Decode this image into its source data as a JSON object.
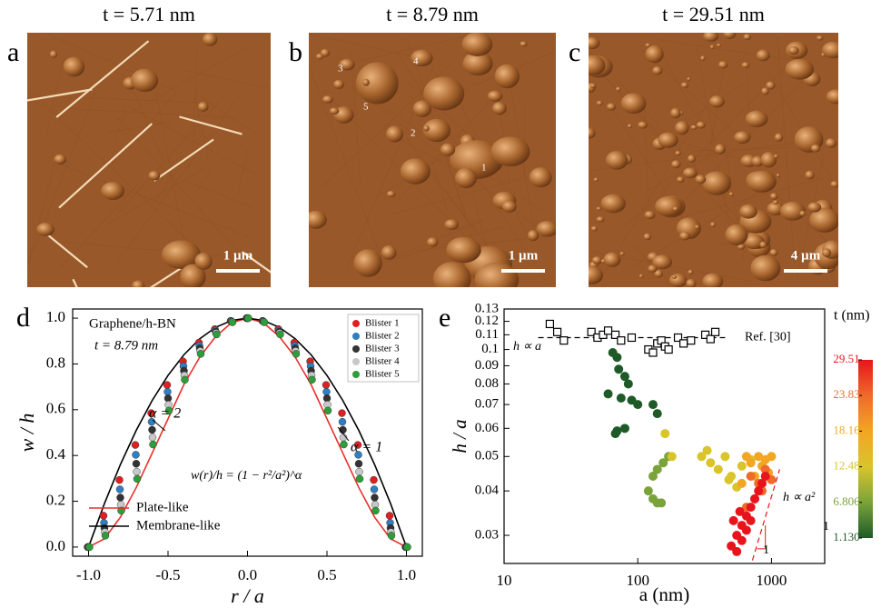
{
  "panels": [
    {
      "label": "a",
      "title": "t = 5.71 nm",
      "scale_bar": "1 µm"
    },
    {
      "label": "b",
      "title": "t = 8.79 nm",
      "scale_bar": "1 µm",
      "blister_labels": [
        "1",
        "2",
        "3",
        "4",
        "5"
      ]
    },
    {
      "label": "c",
      "title": "t = 29.51 nm",
      "scale_bar": "4 µm"
    }
  ],
  "chart_data": [
    {
      "type": "scatter",
      "panel": "d",
      "x_label": "r / a",
      "y_label": "w / h",
      "annotations": [
        "Graphene/h-BN",
        "t = 8.79 nm",
        "α = 2",
        "α = 1",
        "w(r)/h = (1 − r²/a²)^α"
      ],
      "xlim": [
        -1.1,
        1.1
      ],
      "ylim": [
        -0.04,
        1.04
      ],
      "xticks": [
        {
          "value": -1,
          "label": "-1.0"
        },
        -0.5,
        {
          "value": 0,
          "label": "0.0"
        },
        0.5,
        {
          "value": 1,
          "label": "1.0"
        }
      ],
      "yticks": [
        {
          "value": 0,
          "label": "0.0"
        },
        0.2,
        0.4,
        0.6,
        0.8,
        {
          "value": 1,
          "label": "1.0"
        }
      ],
      "x": [
        -1,
        -0.9,
        -0.8,
        -0.7,
        -0.6,
        -0.5,
        -0.4,
        -0.3,
        -0.2,
        -0.1,
        0,
        0.1,
        0.2,
        0.3,
        0.4,
        0.5,
        0.6,
        0.7,
        0.8,
        0.9,
        1
      ],
      "series": [
        {
          "name": "Blister 1",
          "color": "#e02020",
          "values": [
            0,
            0.137,
            0.293,
            0.446,
            0.585,
            0.708,
            0.811,
            0.893,
            0.952,
            0.988,
            1,
            0.988,
            0.952,
            0.893,
            0.811,
            0.708,
            0.585,
            0.446,
            0.293,
            0.137,
            0
          ]
        },
        {
          "name": "Blister 2",
          "color": "#2f7fc0",
          "values": [
            0,
            0.106,
            0.252,
            0.403,
            0.547,
            0.678,
            0.79,
            0.88,
            0.946,
            0.987,
            1,
            0.987,
            0.946,
            0.88,
            0.79,
            0.678,
            0.547,
            0.403,
            0.252,
            0.106,
            0
          ]
        },
        {
          "name": "Blister 3",
          "color": "#333333",
          "values": [
            0,
            0.083,
            0.216,
            0.364,
            0.512,
            0.65,
            0.77,
            0.868,
            0.941,
            0.985,
            1,
            0.985,
            0.941,
            0.868,
            0.77,
            0.65,
            0.512,
            0.364,
            0.216,
            0.083,
            0
          ]
        },
        {
          "name": "Blister 4",
          "color": "#c8c8c8",
          "values": [
            0,
            0.065,
            0.185,
            0.329,
            0.479,
            0.622,
            0.75,
            0.856,
            0.935,
            0.984,
            1,
            0.984,
            0.935,
            0.856,
            0.75,
            0.622,
            0.479,
            0.329,
            0.185,
            0.065,
            0
          ]
        },
        {
          "name": "Blister 5",
          "color": "#2e9e3a",
          "values": [
            0,
            0.05,
            0.159,
            0.298,
            0.448,
            0.596,
            0.731,
            0.844,
            0.929,
            0.982,
            1,
            0.982,
            0.929,
            0.844,
            0.731,
            0.596,
            0.448,
            0.298,
            0.159,
            0.05,
            0
          ]
        }
      ],
      "curves": [
        {
          "name": "Plate-like",
          "color": "#e8302a",
          "values": [
            0,
            0.036,
            0.13,
            0.26,
            0.41,
            0.56,
            0.71,
            0.83,
            0.92,
            0.98,
            1,
            0.98,
            0.92,
            0.83,
            0.71,
            0.56,
            0.41,
            0.26,
            0.13,
            0.036,
            0
          ]
        },
        {
          "name": "Membrane-like",
          "color": "#000000",
          "values": [
            0,
            0.19,
            0.36,
            0.51,
            0.64,
            0.75,
            0.84,
            0.91,
            0.96,
            0.99,
            1,
            0.99,
            0.96,
            0.91,
            0.84,
            0.75,
            0.64,
            0.51,
            0.36,
            0.19,
            0
          ]
        }
      ]
    },
    {
      "type": "scatter",
      "panel": "e",
      "x_label": "a (nm)",
      "y_label": "h / a",
      "log_x": true,
      "log_y": true,
      "annotations": [
        "h ∝ a",
        "h ∝ a²",
        "1",
        "1"
      ],
      "xlim": [
        10,
        2500
      ],
      "ylim": [
        0.025,
        0.13
      ],
      "xticks": [
        10,
        100,
        1000
      ],
      "yticks": [
        0.03,
        0.04,
        0.05,
        0.06,
        0.07,
        0.08,
        0.09,
        0.1,
        0.11,
        0.12,
        0.13
      ],
      "reference": {
        "name": "Ref. [30]",
        "color": "#000000",
        "x": [
          22,
          25,
          28,
          45,
          50,
          55,
          60,
          68,
          75,
          90,
          120,
          130,
          140,
          150,
          160,
          170,
          200,
          220,
          250,
          320,
          350,
          380
        ],
        "values": [
          0.118,
          0.112,
          0.106,
          0.112,
          0.108,
          0.11,
          0.113,
          0.11,
          0.106,
          0.108,
          0.1,
          0.098,
          0.104,
          0.106,
          0.102,
          0.1,
          0.108,
          0.104,
          0.106,
          0.11,
          0.107,
          0.112
        ]
      },
      "colorbar": {
        "label": "t (nm)",
        "lim": [
          1.13,
          29.51
        ],
        "colors": [
          "#1e5a28",
          "#7aa33a",
          "#d9c42a",
          "#f2a623",
          "#f06a2a",
          "#e8141c"
        ],
        "ticks": [
          {
            "value": 1.13,
            "label": "1.130"
          },
          6.806,
          12.48,
          18.16,
          23.83,
          29.51
        ]
      },
      "series": [
        {
          "t": 1.13,
          "color": "#1e5a28",
          "x": [
            65,
            70,
            72,
            80,
            85,
            60,
            75,
            90,
            100,
            130,
            140,
            70,
            80,
            68
          ],
          "values": [
            0.098,
            0.095,
            0.088,
            0.084,
            0.08,
            0.075,
            0.073,
            0.072,
            0.07,
            0.07,
            0.066,
            0.059,
            0.06,
            0.058
          ]
        },
        {
          "t": 6.806,
          "color": "#7aa33a",
          "x": [
            120,
            130,
            140,
            150,
            130,
            170,
            155,
            140
          ],
          "values": [
            0.04,
            0.038,
            0.037,
            0.037,
            0.044,
            0.05,
            0.048,
            0.046
          ]
        },
        {
          "t": 12.48,
          "color": "#d9c42a",
          "x": [
            160,
            180,
            300,
            330,
            350,
            400,
            450,
            500,
            600,
            700,
            550,
            480
          ],
          "values": [
            0.058,
            0.05,
            0.05,
            0.052,
            0.048,
            0.046,
            0.05,
            0.044,
            0.047,
            0.049,
            0.041,
            0.043
          ]
        },
        {
          "t": 18.16,
          "color": "#f2a623",
          "x": [
            650,
            700,
            800,
            900,
            1000,
            950,
            850,
            750,
            600
          ],
          "values": [
            0.05,
            0.048,
            0.05,
            0.049,
            0.05,
            0.045,
            0.047,
            0.044,
            0.042
          ]
        },
        {
          "t": 23.83,
          "color": "#f06a2a",
          "x": [
            700,
            800,
            900,
            1000,
            750,
            650,
            850
          ],
          "values": [
            0.044,
            0.042,
            0.046,
            0.043,
            0.038,
            0.036,
            0.04
          ]
        },
        {
          "t": 29.51,
          "color": "#e8141c",
          "x": [
            500,
            550,
            600,
            650,
            700,
            750,
            800,
            850,
            900,
            550,
            600,
            650,
            700,
            520,
            580
          ],
          "values": [
            0.028,
            0.03,
            0.032,
            0.034,
            0.036,
            0.038,
            0.04,
            0.042,
            0.044,
            0.027,
            0.029,
            0.031,
            0.033,
            0.033,
            0.035
          ]
        }
      ]
    }
  ]
}
